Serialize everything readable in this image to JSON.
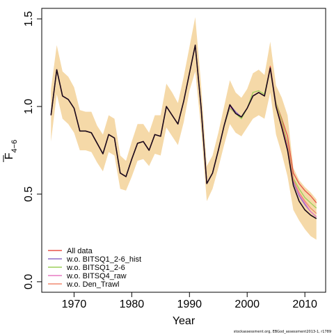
{
  "chart_data": {
    "type": "line",
    "ylabel_main": "F",
    "ylabel_sub": "4−6",
    "xlabel": "Year",
    "xlim": [
      1964.4,
      2013.6
    ],
    "ylim": [
      -0.06,
      1.56
    ],
    "xticks": [
      1970,
      1980,
      1990,
      2000,
      2010
    ],
    "xtick_labels": [
      "1970",
      "1980",
      "1990",
      "2000",
      "2010"
    ],
    "yticks": [
      0.0,
      0.5,
      1.0,
      1.5
    ],
    "ytick_labels": [
      "0.0",
      "0.5",
      "1.0",
      "1.5"
    ],
    "band_color": "#f5d9a8",
    "x": [
      1966,
      1967,
      1968,
      1969,
      1970,
      1971,
      1972,
      1973,
      1974,
      1975,
      1976,
      1977,
      1978,
      1979,
      1980,
      1981,
      1982,
      1983,
      1984,
      1985,
      1986,
      1987,
      1988,
      1989,
      1990,
      1991,
      1992,
      1993,
      1994,
      1995,
      1996,
      1997,
      1998,
      1999,
      2000,
      2001,
      2002,
      2003,
      2004,
      2005,
      2006,
      2007,
      2008,
      2009,
      2010,
      2011,
      2012
    ],
    "confidence_band": {
      "upper": [
        1.1,
        1.35,
        1.2,
        1.17,
        1.11,
        0.98,
        0.97,
        0.97,
        0.89,
        0.84,
        0.95,
        0.93,
        0.72,
        0.69,
        0.8,
        0.9,
        0.9,
        0.85,
        0.95,
        0.95,
        1.13,
        1.08,
        1.02,
        1.17,
        1.34,
        1.51,
        1.13,
        0.66,
        0.72,
        0.85,
        1.0,
        1.15,
        1.08,
        1.05,
        1.1,
        1.19,
        1.21,
        1.18,
        1.37,
        1.12,
        1.05,
        0.95,
        0.65,
        0.58,
        0.54,
        0.51,
        0.47
      ],
      "lower": [
        0.8,
        1.07,
        0.93,
        0.9,
        0.85,
        0.75,
        0.75,
        0.74,
        0.68,
        0.63,
        0.74,
        0.72,
        0.53,
        0.52,
        0.6,
        0.69,
        0.7,
        0.66,
        0.73,
        0.72,
        0.88,
        0.83,
        0.78,
        0.91,
        1.09,
        1.2,
        0.88,
        0.46,
        0.53,
        0.65,
        0.78,
        0.9,
        0.85,
        0.83,
        0.88,
        0.93,
        0.95,
        0.93,
        1.08,
        0.84,
        0.73,
        0.6,
        0.41,
        0.35,
        0.3,
        0.26,
        0.24
      ]
    },
    "series": [
      {
        "name": "All data",
        "color": "#e8524a",
        "values": [
          0.95,
          1.21,
          1.06,
          1.04,
          0.99,
          0.86,
          0.86,
          0.85,
          0.79,
          0.73,
          0.84,
          0.82,
          0.62,
          0.6,
          0.7,
          0.79,
          0.8,
          0.75,
          0.84,
          0.83,
          1.0,
          0.95,
          0.9,
          1.03,
          1.19,
          1.35,
          1.0,
          0.56,
          0.62,
          0.75,
          0.89,
          1.01,
          0.96,
          0.94,
          0.99,
          1.06,
          1.08,
          1.06,
          1.23,
          1.02,
          0.93,
          0.83,
          0.62,
          0.56,
          0.52,
          0.49,
          0.45
        ]
      },
      {
        "name": "w.o. BITSQ1_2-6_hist",
        "color": "#8e6bc8",
        "values": [
          0.95,
          1.21,
          1.06,
          1.04,
          0.99,
          0.86,
          0.86,
          0.85,
          0.79,
          0.73,
          0.84,
          0.82,
          0.62,
          0.6,
          0.7,
          0.79,
          0.8,
          0.75,
          0.84,
          0.83,
          1.0,
          0.95,
          0.9,
          1.03,
          1.19,
          1.35,
          1.0,
          0.56,
          0.62,
          0.75,
          0.89,
          1.01,
          0.97,
          0.94,
          0.99,
          1.06,
          1.08,
          1.06,
          1.22,
          1.0,
          0.88,
          0.76,
          0.57,
          0.49,
          0.44,
          0.4,
          0.37
        ]
      },
      {
        "name": "w.o. BITSQ1_2-6",
        "color": "#9ccf5a",
        "values": [
          0.95,
          1.21,
          1.06,
          1.04,
          0.99,
          0.86,
          0.86,
          0.85,
          0.79,
          0.73,
          0.84,
          0.82,
          0.62,
          0.6,
          0.7,
          0.79,
          0.8,
          0.75,
          0.84,
          0.83,
          1.0,
          0.95,
          0.9,
          1.03,
          1.19,
          1.35,
          1.0,
          0.56,
          0.62,
          0.75,
          0.89,
          0.99,
          0.96,
          0.93,
          0.99,
          1.08,
          1.09,
          1.07,
          1.22,
          1.02,
          0.92,
          0.79,
          0.59,
          0.53,
          0.48,
          0.45,
          0.42
        ]
      },
      {
        "name": "w.o. BITSQ4_raw",
        "color": "#e77ac4",
        "values": [
          0.95,
          1.21,
          1.06,
          1.04,
          0.99,
          0.86,
          0.86,
          0.85,
          0.79,
          0.73,
          0.84,
          0.82,
          0.62,
          0.6,
          0.7,
          0.79,
          0.8,
          0.75,
          0.84,
          0.83,
          1.0,
          0.95,
          0.9,
          1.03,
          1.19,
          1.35,
          1.0,
          0.56,
          0.62,
          0.75,
          0.89,
          1.0,
          0.96,
          0.94,
          0.99,
          1.06,
          1.08,
          1.06,
          1.22,
          1.01,
          0.89,
          0.77,
          0.58,
          0.5,
          0.45,
          0.4,
          0.37
        ]
      },
      {
        "name": "w.o. Den_Trawl",
        "color": "#f08a70",
        "values": [
          0.95,
          1.21,
          1.06,
          1.04,
          0.99,
          0.86,
          0.86,
          0.85,
          0.79,
          0.73,
          0.84,
          0.82,
          0.62,
          0.6,
          0.7,
          0.79,
          0.8,
          0.75,
          0.84,
          0.83,
          1.0,
          0.95,
          0.9,
          1.03,
          1.19,
          1.35,
          1.0,
          0.56,
          0.62,
          0.75,
          0.89,
          1.01,
          0.96,
          0.94,
          0.99,
          1.06,
          1.08,
          1.06,
          1.22,
          1.01,
          0.9,
          0.78,
          0.58,
          0.51,
          0.46,
          0.42,
          0.39
        ]
      },
      {
        "name": "",
        "color": "#1a0a1a",
        "values": [
          0.95,
          1.21,
          1.06,
          1.04,
          0.99,
          0.86,
          0.86,
          0.85,
          0.79,
          0.73,
          0.84,
          0.82,
          0.62,
          0.6,
          0.7,
          0.79,
          0.8,
          0.75,
          0.84,
          0.83,
          1.0,
          0.95,
          0.9,
          1.03,
          1.19,
          1.35,
          1.0,
          0.56,
          0.62,
          0.75,
          0.89,
          1.01,
          0.96,
          0.94,
          0.99,
          1.06,
          1.08,
          1.06,
          1.22,
          1.0,
          0.88,
          0.75,
          0.55,
          0.46,
          0.41,
          0.38,
          0.36
        ]
      }
    ],
    "legend": {
      "position": "bottom-left",
      "entries": [
        {
          "label": "All data",
          "color": "#e8524a"
        },
        {
          "label": "w.o. BITSQ1_2-6_hist",
          "color": "#8e6bc8"
        },
        {
          "label": "w.o. BITSQ1_2-6",
          "color": "#9ccf5a"
        },
        {
          "label": "w.o. BITSQ4_raw",
          "color": "#e77ac4"
        },
        {
          "label": "w.o. Den_Trawl",
          "color": "#f08a70"
        }
      ]
    },
    "footer": "stockassessment.org, EBGod_assessment2013-1, r1789"
  }
}
